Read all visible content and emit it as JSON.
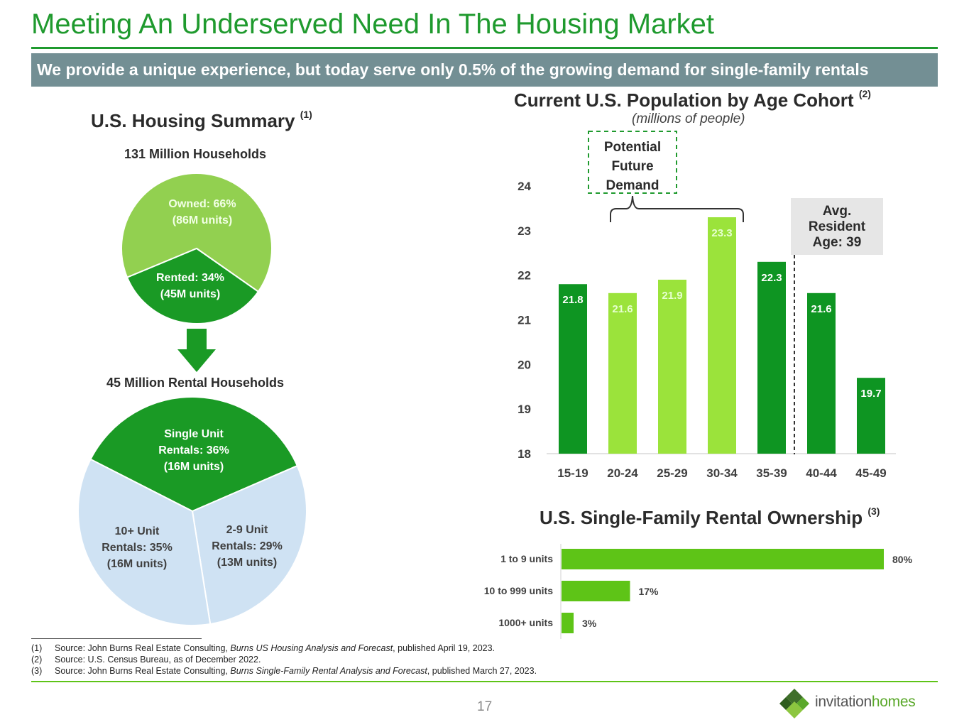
{
  "title": "Meeting An Underserved Need In The Housing Market",
  "banner": "We provide a unique experience, but today serve only 0.5% of the growing demand for single-family rentals",
  "housing_summary": {
    "title": "U.S. Housing Summary",
    "sup": "(1)",
    "households_label": "131 Million Households",
    "rental_households_label": "45 Million Rental Households",
    "colors": {
      "owned": "#92d050",
      "rented": "#1a9a25",
      "single_unit": "#1a9a25",
      "multi_unit": "#cfe2f3",
      "arrow": "#1a9a25"
    },
    "pie1": [
      {
        "line1": "Owned: 66%",
        "line2": "(86M units)",
        "share": 66
      },
      {
        "line1": "Rented: 34%",
        "line2": "(45M units)",
        "share": 34
      }
    ],
    "pie2": [
      {
        "line1": "Single Unit",
        "line2": "Rentals: 36%",
        "line3": "(16M units)",
        "share": 36
      },
      {
        "line1": "2-9 Unit",
        "line2": "Rentals: 29%",
        "line3": "(13M units)",
        "share": 29
      },
      {
        "line1": "10+ Unit",
        "line2": "Rentals: 35%",
        "line3": "(16M units)",
        "share": 35
      }
    ]
  },
  "population": {
    "title": "Current U.S. Population by Age Cohort",
    "sup": "(2)",
    "subtitle": "(millions of people)",
    "demand_box": [
      "Potential",
      "Future",
      "Demand"
    ],
    "avg_box": [
      "Avg.",
      "Resident",
      "Age: 39"
    ],
    "colors": {
      "dark": "#0e9522",
      "light": "#9be33b",
      "label_dark": "#ffffff",
      "label_light": "#e6ffd0"
    }
  },
  "sfr": {
    "title": "U.S. Single-Family Rental Ownership",
    "sup": "(3)",
    "color": "#5ec417"
  },
  "chart_data": [
    {
      "type": "pie",
      "title": "131 Million Households",
      "categories": [
        "Owned",
        "Rented"
      ],
      "values": [
        66,
        34
      ]
    },
    {
      "type": "pie",
      "title": "45 Million Rental Households",
      "categories": [
        "Single Unit Rentals",
        "2-9 Unit Rentals",
        "10+ Unit Rentals"
      ],
      "values": [
        36,
        29,
        35
      ]
    },
    {
      "type": "bar",
      "title": "Current U.S. Population by Age Cohort",
      "categories": [
        "15-19",
        "20-24",
        "25-29",
        "30-34",
        "35-39",
        "40-44",
        "45-49"
      ],
      "values": [
        21.8,
        21.6,
        21.9,
        23.3,
        22.3,
        21.6,
        19.7
      ],
      "highlighted": [
        false,
        true,
        true,
        true,
        false,
        false,
        false
      ],
      "ylim": [
        18,
        24
      ],
      "yticks": [
        18,
        19,
        20,
        21,
        22,
        23,
        24
      ],
      "grid": false
    },
    {
      "type": "bar",
      "orientation": "horizontal",
      "title": "U.S. Single-Family Rental Ownership",
      "categories": [
        "1 to 9 units",
        "10 to 999 units",
        "1000+ units"
      ],
      "values": [
        80,
        17,
        3
      ],
      "value_labels": [
        "80%",
        "17%",
        "3%"
      ],
      "xlim": [
        0,
        80
      ]
    }
  ],
  "footnotes": [
    {
      "num": "(1)",
      "pre": "Source: John Burns Real Estate Consulting, ",
      "italic": "Burns US Housing Analysis and Forecast",
      "post": ", published April 19, 2023."
    },
    {
      "num": "(2)",
      "pre": "Source: U.S. Census Bureau, as of December 2022.",
      "italic": "",
      "post": ""
    },
    {
      "num": "(3)",
      "pre": "Source: John Burns Real Estate Consulting, ",
      "italic": "Burns Single-Family Rental Analysis and Forecast",
      "post": ", published March 27, 2023."
    }
  ],
  "page_number": "17",
  "logo": {
    "word1": "invitation",
    "word2": "homes",
    "colors": [
      "#3f6f2a",
      "#5aa82a",
      "#8cc63f",
      "#2e5e1e"
    ]
  }
}
